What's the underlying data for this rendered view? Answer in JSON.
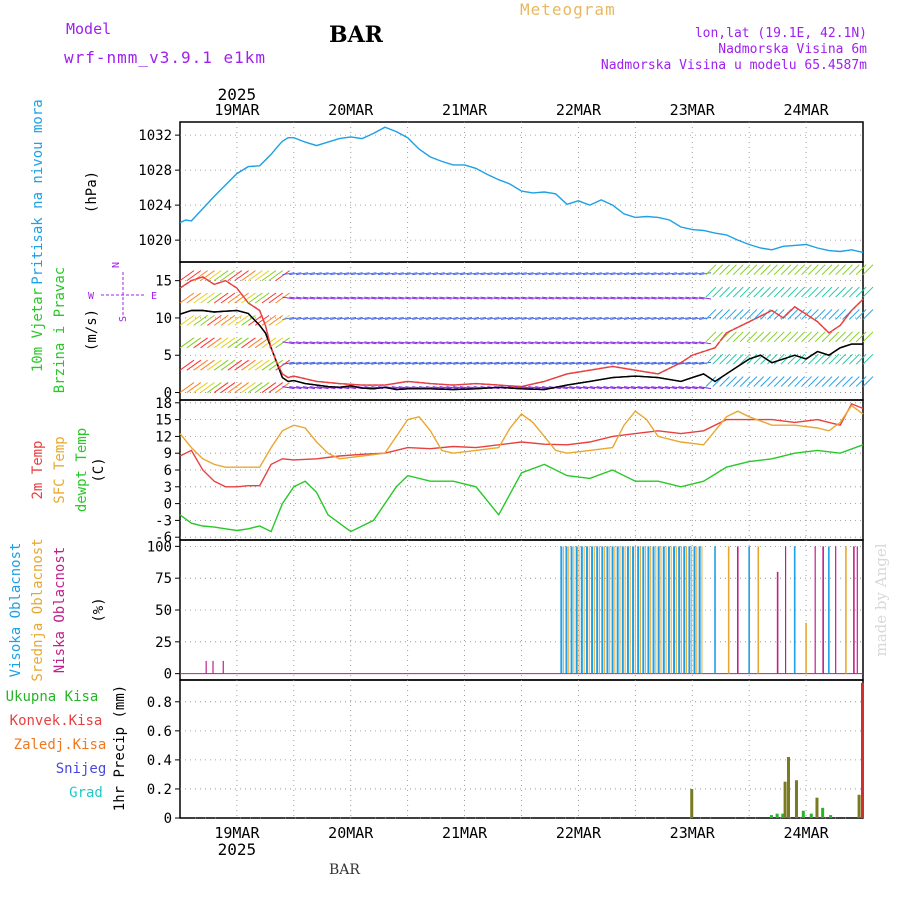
{
  "header": {
    "model_label": "Model",
    "model_name": "wrf-nmm_v3.9.1 e1km",
    "station": "BAR",
    "title": "Meteogram",
    "coords": "lon,lat (19.1E, 42.1N)",
    "elevation": "Nadmorska Visina 6m",
    "model_elevation": "Nadmorska Visina u modelu 65.4587m",
    "footer_station": "BAR",
    "watermark": "made by Angel"
  },
  "colors": {
    "pressure": "#1ea0e6",
    "temp2m": "#e84040",
    "sfc": "#e8a830",
    "dewpt": "#28c828",
    "high_cloud": "#1ea0e6",
    "mid_cloud": "#e8a830",
    "low_cloud": "#c0208a",
    "total_precip": "#28b428",
    "conv_precip": "#e84040",
    "freezing_precip": "#f07820",
    "snow": "#4848e0",
    "hail": "#20c8c8",
    "precip_bar": "#7a7a20",
    "precip_bar_red": "#d03030",
    "label_purple": "#a020f0",
    "wind_speed": "#000000",
    "gust": "#e84040"
  },
  "chart_data": {
    "type": "line",
    "year": "2025",
    "x_range": [
      "2025-03-18T12:00",
      "2025-03-24T12:00"
    ],
    "x_ticks": [
      "19MAR",
      "20MAR",
      "21MAR",
      "22MAR",
      "23MAR",
      "24MAR"
    ],
    "panels": [
      {
        "id": "pressure",
        "type": "line",
        "ylabel_main": "Pritisak na nivou mora",
        "ylabel_unit": "(hPa)",
        "ylim": [
          1017.5,
          1033.5
        ],
        "yticks": [
          1020,
          1024,
          1028,
          1032
        ],
        "series": [
          {
            "color_key": "pressure",
            "x": [
              0,
              0.05,
              0.1,
              0.2,
              0.3,
              0.4,
              0.5,
              0.6,
              0.7,
              0.8,
              0.85,
              0.9,
              0.95,
              1.0,
              1.1,
              1.2,
              1.3,
              1.4,
              1.5,
              1.6,
              1.7,
              1.8,
              1.9,
              2.0,
              2.1,
              2.2,
              2.3,
              2.4,
              2.5,
              2.6,
              2.7,
              2.8,
              2.9,
              3.0,
              3.1,
              3.2,
              3.3,
              3.4,
              3.5,
              3.6,
              3.7,
              3.8,
              3.9,
              4.0,
              4.1,
              4.2,
              4.3,
              4.4,
              4.5,
              4.6,
              4.7,
              4.8,
              4.9,
              5.0,
              5.1,
              5.2,
              5.3,
              5.4,
              5.5,
              5.6,
              5.7,
              5.8,
              5.9,
              6.0
            ],
            "values": [
              1022.0,
              1022.3,
              1022.2,
              1023.6,
              1025.0,
              1026.3,
              1027.6,
              1028.4,
              1028.5,
              1029.8,
              1030.6,
              1031.3,
              1031.7,
              1031.7,
              1031.2,
              1030.8,
              1031.2,
              1031.6,
              1031.8,
              1031.6,
              1032.2,
              1032.9,
              1032.4,
              1031.7,
              1030.4,
              1029.5,
              1029.0,
              1028.6,
              1028.6,
              1028.2,
              1027.5,
              1026.9,
              1026.4,
              1025.6,
              1025.4,
              1025.5,
              1025.3,
              1024.1,
              1024.5,
              1024.0,
              1024.6,
              1024.0,
              1023.0,
              1022.6,
              1022.7,
              1022.6,
              1022.3,
              1021.5,
              1021.2,
              1021.1,
              1020.8,
              1020.6,
              1020.0,
              1019.5,
              1019.1,
              1018.9,
              1019.3,
              1019.4,
              1019.5,
              1019.1,
              1018.8,
              1018.7,
              1018.9,
              1018.6
            ]
          }
        ]
      },
      {
        "id": "wind",
        "type": "line",
        "ylabel_main": "10m Vjetar",
        "ylabel_sub": "Brzina i Pravac",
        "ylabel_unit": "(m/s)",
        "compass": {
          "n": "N",
          "w": "W",
          "e": "E",
          "s": "S"
        },
        "ylim": [
          -1,
          17.5
        ],
        "yticks": [
          0,
          5,
          10,
          15
        ],
        "series": [
          {
            "color_key": "wind_speed",
            "x": [
              0,
              0.1,
              0.2,
              0.3,
              0.4,
              0.5,
              0.6,
              0.7,
              0.75,
              0.8,
              0.85,
              0.9,
              0.95,
              1.0,
              1.1,
              1.2,
              1.3,
              1.4,
              1.5,
              1.6,
              1.7,
              1.8,
              1.9,
              2.0,
              2.2,
              2.4,
              2.6,
              2.8,
              3.0,
              3.2,
              3.4,
              3.6,
              3.8,
              4.0,
              4.2,
              4.4,
              4.5,
              4.6,
              4.7,
              4.8,
              4.9,
              5.0,
              5.1,
              5.2,
              5.3,
              5.4,
              5.5,
              5.6,
              5.7,
              5.8,
              5.9,
              6.0
            ],
            "values": [
              10.5,
              11.0,
              11.0,
              10.8,
              10.9,
              11.0,
              10.6,
              9.0,
              8.0,
              6.0,
              4.0,
              2.0,
              1.5,
              1.6,
              1.2,
              1.0,
              0.8,
              0.7,
              0.9,
              0.6,
              0.5,
              0.7,
              0.4,
              0.5,
              0.5,
              0.4,
              0.5,
              0.7,
              0.5,
              0.4,
              1.0,
              1.5,
              2.0,
              2.2,
              2.0,
              1.5,
              2.0,
              2.5,
              1.5,
              2.5,
              3.5,
              4.5,
              5.0,
              4.0,
              4.5,
              5.0,
              4.5,
              5.5,
              5.0,
              6.0,
              6.5,
              6.5
            ]
          },
          {
            "color_key": "gust",
            "x": [
              0,
              0.1,
              0.2,
              0.3,
              0.4,
              0.5,
              0.6,
              0.7,
              0.75,
              0.8,
              0.85,
              0.9,
              0.95,
              1.0,
              1.2,
              1.4,
              1.6,
              1.8,
              2.0,
              2.2,
              2.4,
              2.6,
              2.8,
              3.0,
              3.2,
              3.4,
              3.6,
              3.8,
              4.0,
              4.2,
              4.4,
              4.5,
              4.6,
              4.7,
              4.8,
              5.0,
              5.2,
              5.3,
              5.4,
              5.5,
              5.6,
              5.7,
              5.8,
              5.9,
              6.0
            ],
            "values": [
              14.0,
              15.0,
              15.5,
              14.5,
              15.0,
              14.0,
              12.0,
              11.0,
              9.0,
              6.0,
              4.0,
              2.5,
              2.0,
              2.2,
              1.5,
              1.2,
              1.0,
              1.0,
              1.5,
              1.2,
              1.0,
              1.2,
              1.0,
              0.8,
              1.5,
              2.5,
              3.0,
              3.5,
              3.0,
              2.5,
              4.0,
              5.0,
              5.5,
              6.0,
              8.0,
              9.5,
              11.0,
              10.0,
              11.5,
              10.5,
              9.5,
              8.0,
              9.0,
              11.0,
              12.5
            ]
          }
        ]
      },
      {
        "id": "temperature",
        "type": "line",
        "ylabel_a": "2m Temp",
        "ylabel_b": "SFC Temp",
        "ylabel_c": "dewpt Temp",
        "ylabel_unit": "(C)",
        "ylim": [
          -6.5,
          18.5
        ],
        "yticks": [
          -6,
          -3,
          0,
          3,
          6,
          9,
          12,
          15,
          18
        ],
        "series": [
          {
            "color_key": "temp2m",
            "x": [
              0,
              0.1,
              0.2,
              0.3,
              0.4,
              0.5,
              0.6,
              0.7,
              0.8,
              0.9,
              1.0,
              1.2,
              1.4,
              1.6,
              1.8,
              2.0,
              2.2,
              2.4,
              2.6,
              2.8,
              3.0,
              3.2,
              3.4,
              3.6,
              3.8,
              4.0,
              4.2,
              4.4,
              4.6,
              4.8,
              5.0,
              5.2,
              5.4,
              5.6,
              5.8,
              5.9,
              6.0
            ],
            "values": [
              8.5,
              9.5,
              6.0,
              4.0,
              3.0,
              3.0,
              3.2,
              3.2,
              7.0,
              8.0,
              7.8,
              8.0,
              8.5,
              8.8,
              9.0,
              10.0,
              9.8,
              10.2,
              10.0,
              10.5,
              11.0,
              10.6,
              10.5,
              11.0,
              12.0,
              12.5,
              13.0,
              12.5,
              13.0,
              15.0,
              15.0,
              15.0,
              14.5,
              15.0,
              14.0,
              17.8,
              17.0
            ]
          },
          {
            "color_key": "sfc",
            "x": [
              0,
              0.1,
              0.2,
              0.3,
              0.4,
              0.5,
              0.6,
              0.7,
              0.8,
              0.9,
              1.0,
              1.1,
              1.2,
              1.3,
              1.4,
              1.6,
              1.8,
              1.9,
              2.0,
              2.1,
              2.2,
              2.3,
              2.4,
              2.6,
              2.8,
              2.9,
              3.0,
              3.1,
              3.2,
              3.3,
              3.4,
              3.6,
              3.8,
              3.9,
              4.0,
              4.1,
              4.2,
              4.4,
              4.6,
              4.8,
              4.9,
              5.0,
              5.2,
              5.4,
              5.6,
              5.7,
              5.8,
              5.9,
              6.0
            ],
            "values": [
              12.5,
              10.0,
              8.0,
              7.0,
              6.5,
              6.5,
              6.5,
              6.5,
              10.0,
              13.0,
              14.0,
              13.5,
              11.0,
              9.0,
              8.0,
              8.5,
              9.0,
              12.0,
              15.0,
              15.5,
              13.0,
              9.5,
              9.0,
              9.5,
              10.0,
              13.5,
              16.0,
              14.5,
              12.0,
              9.5,
              9.0,
              9.5,
              10.0,
              14.0,
              16.5,
              15.0,
              12.0,
              11.0,
              10.5,
              15.5,
              16.5,
              15.5,
              14.0,
              14.0,
              13.5,
              13.0,
              14.5,
              17.5,
              16.0
            ]
          },
          {
            "color_key": "dewpt",
            "x": [
              0,
              0.1,
              0.2,
              0.3,
              0.4,
              0.5,
              0.6,
              0.7,
              0.8,
              0.9,
              1.0,
              1.1,
              1.2,
              1.3,
              1.4,
              1.5,
              1.6,
              1.7,
              1.8,
              1.9,
              2.0,
              2.2,
              2.4,
              2.6,
              2.8,
              3.0,
              3.2,
              3.4,
              3.6,
              3.8,
              4.0,
              4.2,
              4.4,
              4.6,
              4.8,
              5.0,
              5.2,
              5.4,
              5.6,
              5.8,
              6.0
            ],
            "values": [
              -2.0,
              -3.5,
              -4.0,
              -4.2,
              -4.5,
              -4.8,
              -4.5,
              -4.0,
              -5.0,
              0.0,
              3.0,
              4.0,
              2.0,
              -2.0,
              -3.5,
              -5.0,
              -4.0,
              -3.0,
              0.0,
              3.0,
              5.0,
              4.0,
              4.0,
              3.0,
              -2.0,
              5.5,
              7.0,
              5.0,
              4.5,
              6.0,
              4.0,
              4.0,
              3.0,
              4.0,
              6.5,
              7.5,
              8.0,
              9.0,
              9.5,
              9.0,
              10.5
            ]
          }
        ]
      },
      {
        "id": "clouds",
        "type": "bar",
        "ylabel_a": "Visoka Oblacnost",
        "ylabel_b": "Srednja Oblacnost",
        "ylabel_c": "Niska Oblacnost",
        "ylabel_unit": "(%)",
        "ylim": [
          -5,
          105
        ],
        "yticks": [
          0,
          25,
          50,
          75,
          100
        ],
        "low_cloud_bars": {
          "x": [
            0.23,
            0.29,
            0.38,
            5.32,
            5.58,
            5.76,
            5.95
          ],
          "values": [
            10,
            10,
            10,
            100,
            100,
            100,
            100
          ]
        },
        "high_cloud_segment": [
          3.35,
          4.6
        ],
        "mid_cloud_segment": [
          3.32,
          4.62
        ],
        "sparse_cloud_bars": {
          "x": [
            4.7,
            4.82,
            4.9,
            5.0,
            5.08,
            5.25,
            5.4,
            5.5,
            5.65,
            5.7,
            5.85,
            5.92
          ],
          "values": [
            100,
            100,
            100,
            100,
            100,
            80,
            100,
            40,
            100,
            100,
            100,
            100
          ]
        }
      },
      {
        "id": "precip",
        "type": "bar",
        "ylabel_unit": "1hr Precip (mm)",
        "ylim": [
          0,
          0.95
        ],
        "yticks": [
          0,
          0.2,
          0.4,
          0.6,
          0.8
        ],
        "legend": [
          "Ukupna Kisa",
          "Konvek.Kisa",
          "Zaledj.Kisa",
          "Snijeg",
          "Grad"
        ],
        "bars": {
          "x": [
            4.5,
            5.2,
            5.25,
            5.3,
            5.32,
            5.35,
            5.42,
            5.48,
            5.55,
            5.6,
            5.65,
            5.72,
            5.97,
            6.0
          ],
          "values": [
            0.2,
            0.02,
            0.03,
            0.03,
            0.25,
            0.42,
            0.26,
            0.05,
            0.03,
            0.14,
            0.07,
            0.02,
            0.16,
            0.93
          ]
        }
      }
    ]
  }
}
